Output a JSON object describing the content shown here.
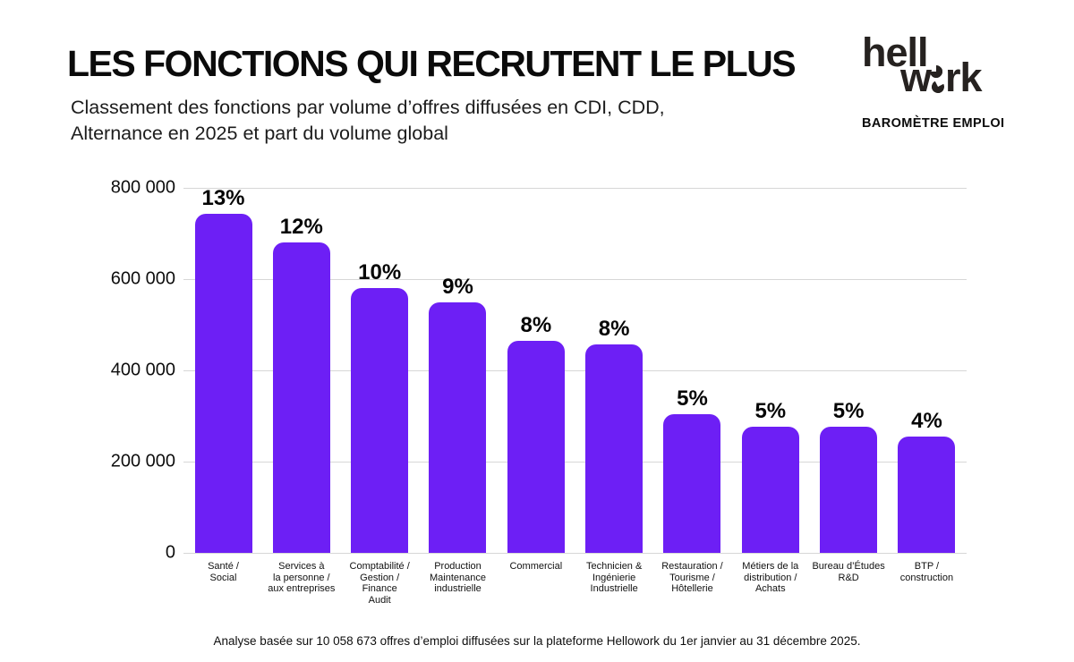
{
  "header": {
    "title": "LES FONCTIONS QUI RECRUTENT LE PLUS",
    "subtitle": "Classement des fonctions par volume d’offres diffusées en CDI, CDD,\nAlternance en 2025 et part du volume global"
  },
  "logo": {
    "line1": "hell",
    "line2_pre": "w",
    "line2_post": "rk",
    "tagline": "BAROMÈTRE EMPLOI"
  },
  "chart_data": {
    "type": "bar",
    "categories": [
      "Santé /\nSocial",
      "Services à\nla personne /\naux entreprises",
      "Comptabilité /\nGestion /\nFinance\nAudit",
      "Production\nMaintenance\nindustrielle",
      "Commercial",
      "Technicien &\nIngénierie\nIndustrielle",
      "Restauration /\nTourisme /\nHôtellerie",
      "Métiers de la\ndistribution /\nAchats",
      "Bureau d’Études\nR&D",
      "BTP /\nconstruction"
    ],
    "values": [
      765000,
      680000,
      580000,
      549000,
      465000,
      456000,
      303000,
      277000,
      276000,
      254000
    ],
    "labels_pct": [
      "13%",
      "12%",
      "10%",
      "9%",
      "8%",
      "8%",
      "5%",
      "5%",
      "5%",
      "4%"
    ],
    "xlabel": "",
    "ylabel": "",
    "ylim": [
      0,
      800000
    ],
    "yticks": [
      0,
      200000,
      400000,
      600000,
      800000
    ],
    "ytick_labels": [
      "0",
      "200 000",
      "400 000",
      "600 000",
      "800 000"
    ],
    "grid": true,
    "legend": false,
    "bar_color": "#6D1FF5"
  },
  "footer": {
    "note": "Analyse basée sur 10 058 673 offres d’emploi diffusées sur la plateforme Hellowork du 1er janvier au 31 décembre 2025."
  }
}
